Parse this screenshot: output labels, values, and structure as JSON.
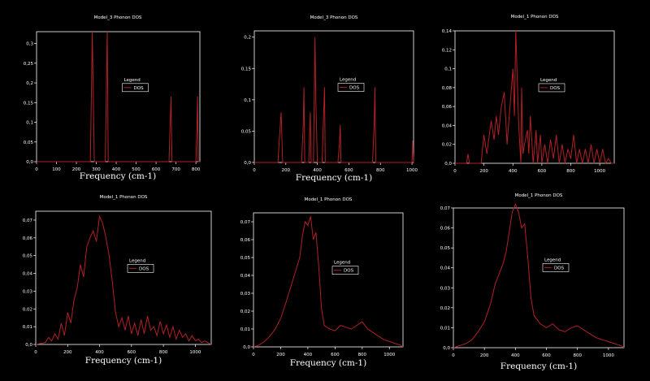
{
  "colors": {
    "background": "#000000",
    "axes": "#ffffff",
    "series": "#b32025"
  },
  "chart_data": [
    {
      "type": "line",
      "title": "Model_3 Phonon DOS",
      "xlabel": "Frequency (cm-1)",
      "ylabel": "",
      "xlim": [
        0,
        820
      ],
      "ylim": [
        0,
        0.33
      ],
      "xticks": [
        0,
        100,
        200,
        300,
        400,
        500,
        600,
        700,
        800
      ],
      "yticks": [
        0,
        0.05,
        0.1,
        0.15,
        0.2,
        0.25,
        0.3
      ],
      "ytick_labels": [
        "0,0",
        "0,05",
        "0,1",
        "0,15",
        "0,2",
        "0,25",
        "0,3"
      ],
      "legend": {
        "title": "Legend",
        "position": "center",
        "entries": [
          "DOS"
        ]
      },
      "series": [
        {
          "name": "DOS",
          "x": [
            0,
            270,
            275,
            280,
            285,
            290,
            345,
            350,
            355,
            360,
            665,
            670,
            675,
            680,
            800,
            805,
            808,
            812,
            820
          ],
          "y": [
            0,
            0,
            0.16,
            0.33,
            0.16,
            0,
            0,
            0.17,
            0.33,
            0,
            0,
            0.08,
            0.165,
            0,
            0,
            0.08,
            0.165,
            0,
            0
          ]
        }
      ]
    },
    {
      "type": "line",
      "title": "Model_3 Phonon DOS",
      "xlabel": "Frequency (cm-1)",
      "ylabel": "",
      "xlim": [
        0,
        1010
      ],
      "ylim": [
        0,
        0.21
      ],
      "xticks": [
        0,
        200,
        400,
        600,
        800,
        1000
      ],
      "yticks": [
        0,
        0.05,
        0.1,
        0.15,
        0.2
      ],
      "ytick_labels": [
        "0,0",
        "0,05",
        "0,1",
        "0,15",
        "0,2"
      ],
      "legend": {
        "title": "Legend",
        "position": "center",
        "entries": [
          "DOS"
        ]
      },
      "series": [
        {
          "name": "DOS",
          "x": [
            0,
            150,
            160,
            170,
            180,
            300,
            310,
            315,
            320,
            345,
            350,
            355,
            360,
            375,
            385,
            390,
            400,
            430,
            440,
            445,
            450,
            530,
            540,
            545,
            550,
            750,
            760,
            765,
            770,
            1000,
            1005,
            1010
          ],
          "y": [
            0,
            0,
            0.04,
            0.08,
            0,
            0,
            0.06,
            0.12,
            0,
            0,
            0.04,
            0.08,
            0,
            0,
            0.2,
            0.1,
            0,
            0,
            0.08,
            0.12,
            0,
            0,
            0.03,
            0.06,
            0,
            0,
            0.06,
            0.12,
            0,
            0,
            0.035,
            0
          ]
        }
      ]
    },
    {
      "type": "line",
      "title": "Model_1 Phonon DOS",
      "xlabel": "",
      "ylabel": "",
      "xlim": [
        0,
        1100
      ],
      "ylim": [
        0,
        0.14
      ],
      "xticks": [
        0,
        200,
        400,
        600,
        800,
        1000
      ],
      "yticks": [
        0,
        0.02,
        0.04,
        0.06,
        0.08,
        0.1,
        0.12,
        0.14
      ],
      "ytick_labels": [
        "0,0",
        "0,02",
        "0,04",
        "0,06",
        "0,08",
        "0,1",
        "0,12",
        "0,14"
      ],
      "legend": {
        "title": "Legend",
        "position": "center",
        "entries": [
          "DOS"
        ]
      },
      "series": [
        {
          "name": "DOS",
          "x": [
            0,
            80,
            90,
            100,
            180,
            200,
            220,
            250,
            270,
            285,
            300,
            320,
            340,
            360,
            380,
            400,
            410,
            420,
            430,
            440,
            455,
            460,
            470,
            480,
            500,
            510,
            520,
            540,
            560,
            570,
            590,
            600,
            620,
            640,
            660,
            680,
            700,
            720,
            740,
            760,
            780,
            800,
            820,
            840,
            860,
            880,
            900,
            920,
            940,
            960,
            980,
            1000,
            1020,
            1040,
            1060,
            1080,
            1100
          ],
          "y": [
            0,
            0,
            0.01,
            0,
            0,
            0.03,
            0.01,
            0.045,
            0.025,
            0.05,
            0.03,
            0.06,
            0.075,
            0.02,
            0.06,
            0.1,
            0.05,
            0.14,
            0.09,
            0.04,
            0,
            0.08,
            0.01,
            0.02,
            0.035,
            0.01,
            0.05,
            0,
            0.035,
            0,
            0.03,
            0,
            0.02,
            0,
            0.025,
            0.005,
            0.03,
            0,
            0.02,
            0,
            0.015,
            0.005,
            0.03,
            0,
            0.015,
            0,
            0.015,
            0,
            0.02,
            0,
            0.015,
            0,
            0.015,
            0,
            0.005,
            0,
            0
          ]
        }
      ]
    },
    {
      "type": "line",
      "title": "Model_1 Phonon DOS",
      "xlabel": "Frequency (cm-1)",
      "ylabel": "",
      "xlim": [
        0,
        1100
      ],
      "ylim": [
        0,
        0.075
      ],
      "xticks": [
        0,
        200,
        400,
        600,
        800,
        1000
      ],
      "yticks": [
        0,
        0.01,
        0.02,
        0.03,
        0.04,
        0.05,
        0.06,
        0.07
      ],
      "ytick_labels": [
        "0,0",
        "0,01",
        "0,02",
        "0,03",
        "0,04",
        "0,05",
        "0,06",
        "0,07"
      ],
      "legend": {
        "title": "Legend",
        "position": "center",
        "entries": [
          "DOS"
        ]
      },
      "series": [
        {
          "name": "DOS",
          "x": [
            0,
            60,
            80,
            100,
            120,
            140,
            160,
            180,
            200,
            220,
            240,
            260,
            280,
            300,
            320,
            340,
            360,
            380,
            400,
            420,
            440,
            460,
            480,
            500,
            520,
            540,
            560,
            580,
            600,
            620,
            640,
            660,
            680,
            700,
            720,
            740,
            760,
            780,
            800,
            820,
            840,
            860,
            880,
            900,
            920,
            940,
            960,
            980,
            1000,
            1020,
            1040,
            1060,
            1080,
            1100
          ],
          "y": [
            0,
            0.001,
            0.004,
            0.002,
            0.006,
            0.003,
            0.012,
            0.005,
            0.018,
            0.012,
            0.025,
            0.032,
            0.045,
            0.038,
            0.055,
            0.06,
            0.064,
            0.058,
            0.072,
            0.068,
            0.06,
            0.05,
            0.035,
            0.018,
            0.01,
            0.015,
            0.008,
            0.016,
            0.006,
            0.012,
            0.005,
            0.014,
            0.006,
            0.016,
            0.008,
            0.01,
            0.005,
            0.013,
            0.006,
            0.011,
            0.004,
            0.01,
            0.003,
            0.008,
            0.004,
            0.006,
            0.002,
            0.005,
            0.002,
            0.003,
            0.001,
            0.002,
            0.001,
            0
          ]
        }
      ]
    },
    {
      "type": "line",
      "title": "Model_1 Phonon DOS",
      "xlabel": "Frequency (cm-1)",
      "ylabel": "",
      "xlim": [
        0,
        1100
      ],
      "ylim": [
        0,
        0.075
      ],
      "xticks": [
        0,
        200,
        400,
        600,
        800,
        1000
      ],
      "yticks": [
        0,
        0.01,
        0.02,
        0.03,
        0.04,
        0.05,
        0.06,
        0.07
      ],
      "ytick_labels": [
        "0,0",
        "0,01",
        "0,02",
        "0,03",
        "0,04",
        "0,05",
        "0,06",
        "0,07"
      ],
      "legend": {
        "title": "Legend",
        "position": "center",
        "entries": [
          "DOS"
        ]
      },
      "series": [
        {
          "name": "DOS",
          "x": [
            0,
            40,
            80,
            120,
            160,
            200,
            240,
            280,
            300,
            320,
            340,
            360,
            380,
            400,
            420,
            440,
            460,
            480,
            500,
            520,
            560,
            600,
            640,
            680,
            720,
            760,
            800,
            840,
            880,
            920,
            960,
            1000,
            1040,
            1080,
            1100
          ],
          "y": [
            0,
            0.001,
            0.003,
            0.006,
            0.01,
            0.016,
            0.025,
            0.035,
            0.04,
            0.045,
            0.05,
            0.062,
            0.07,
            0.068,
            0.073,
            0.06,
            0.064,
            0.045,
            0.022,
            0.012,
            0.01,
            0.009,
            0.012,
            0.011,
            0.01,
            0.012,
            0.014,
            0.01,
            0.008,
            0.006,
            0.004,
            0.003,
            0.002,
            0.001,
            0
          ]
        }
      ]
    },
    {
      "type": "line",
      "title": "Model_1 Phonon DOS",
      "xlabel": "Frequency (cm-1)",
      "ylabel": "",
      "xlim": [
        0,
        1100
      ],
      "ylim": [
        0,
        0.07
      ],
      "xticks": [
        0,
        200,
        400,
        600,
        800,
        1000
      ],
      "yticks": [
        0,
        0.01,
        0.02,
        0.03,
        0.04,
        0.05,
        0.06,
        0.07
      ],
      "ytick_labels": [
        "0,0",
        "0,01",
        "0,02",
        "0,03",
        "0,04",
        "0,05",
        "0,06",
        "0,07"
      ],
      "legend": {
        "title": "Legend",
        "position": "center",
        "entries": [
          "DOS"
        ]
      },
      "series": [
        {
          "name": "DOS",
          "x": [
            0,
            40,
            80,
            120,
            160,
            200,
            240,
            270,
            300,
            320,
            340,
            360,
            380,
            400,
            420,
            440,
            460,
            480,
            500,
            520,
            560,
            600,
            640,
            680,
            720,
            760,
            800,
            840,
            880,
            920,
            960,
            1000,
            1040,
            1080,
            1100
          ],
          "y": [
            0,
            0.001,
            0.002,
            0.004,
            0.008,
            0.013,
            0.022,
            0.032,
            0.038,
            0.042,
            0.048,
            0.058,
            0.068,
            0.072,
            0.068,
            0.06,
            0.062,
            0.045,
            0.025,
            0.016,
            0.012,
            0.01,
            0.012,
            0.009,
            0.008,
            0.01,
            0.011,
            0.009,
            0.007,
            0.005,
            0.004,
            0.003,
            0.002,
            0.001,
            0
          ]
        }
      ]
    }
  ]
}
